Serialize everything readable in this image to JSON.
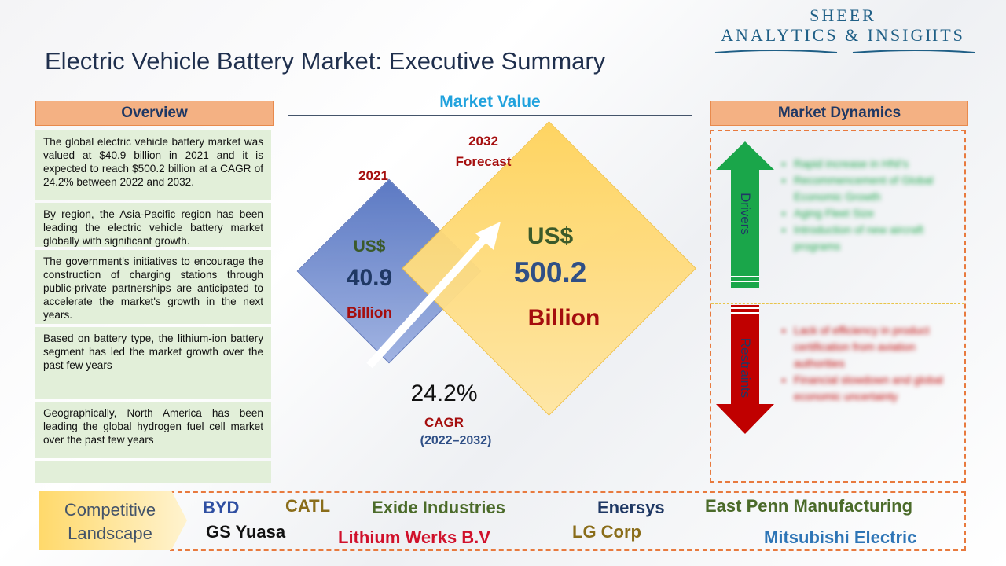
{
  "brand": {
    "line1": "SHEER",
    "line2": "ANALYTICS & INSIGHTS"
  },
  "title": "Electric Vehicle Battery Market: Executive Summary",
  "overview": {
    "header": "Overview",
    "items": [
      "The global electric vehicle battery market was valued at $40.9 billion in 2021 and it is expected to reach $500.2 billion at a CAGR of 24.2% between 2022 and 2032.",
      "By region, the Asia-Pacific region has been leading the electric vehicle battery market globally with significant growth.",
      "The government's initiatives to encourage the construction of charging stations through public-private partnerships are anticipated to accelerate the market's growth in the next years.",
      "Based on battery type, the lithium-ion battery segment has led the market growth over the past few years",
      "Geographically, North America has been leading the global hydrogen fuel cell market over the past few years",
      ""
    ]
  },
  "market_value": {
    "title": "Market Value",
    "y2021": {
      "year": "2021",
      "currency": "US$",
      "value": "40.9",
      "unit": "Billion"
    },
    "y2032": {
      "year": "2032",
      "label": "Forecast",
      "currency": "US$",
      "value": "500.2",
      "unit": "Billion"
    },
    "cagr": {
      "value": "24.2%",
      "label": "CAGR",
      "period": "(2022–2032)"
    }
  },
  "dynamics": {
    "header": "Market Dynamics",
    "drivers_label": "Drivers",
    "restraints_label": "Restraints",
    "drivers": [
      "Rapid increase in HNI's",
      "Recommencement of Global Economic Growth",
      "Aging Fleet Size",
      "Introduction of new aircraft programs"
    ],
    "restraints": [
      "Lack of efficiency in product certification from aviation authorities",
      "Financial slowdown and global economic uncertainty"
    ]
  },
  "competitive": {
    "label_line1": "Competitive",
    "label_line2": "Landscape",
    "companies": [
      {
        "name": "BYD",
        "color": "#2f4fa2"
      },
      {
        "name": "CATL",
        "color": "#8a6d1a"
      },
      {
        "name": "Exide Industries",
        "color": "#4b6b2a"
      },
      {
        "name": "Enersys",
        "color": "#1f3864"
      },
      {
        "name": "East Penn Manufacturing",
        "color": "#4b6b2a"
      },
      {
        "name": "GS Yuasa",
        "color": "#111111"
      },
      {
        "name": "Lithium Werks B.V",
        "color": "#d0112b"
      },
      {
        "name": "LG Corp",
        "color": "#8a6d1a"
      },
      {
        "name": "Mitsubishi Electric",
        "color": "#2e75b6"
      }
    ]
  }
}
